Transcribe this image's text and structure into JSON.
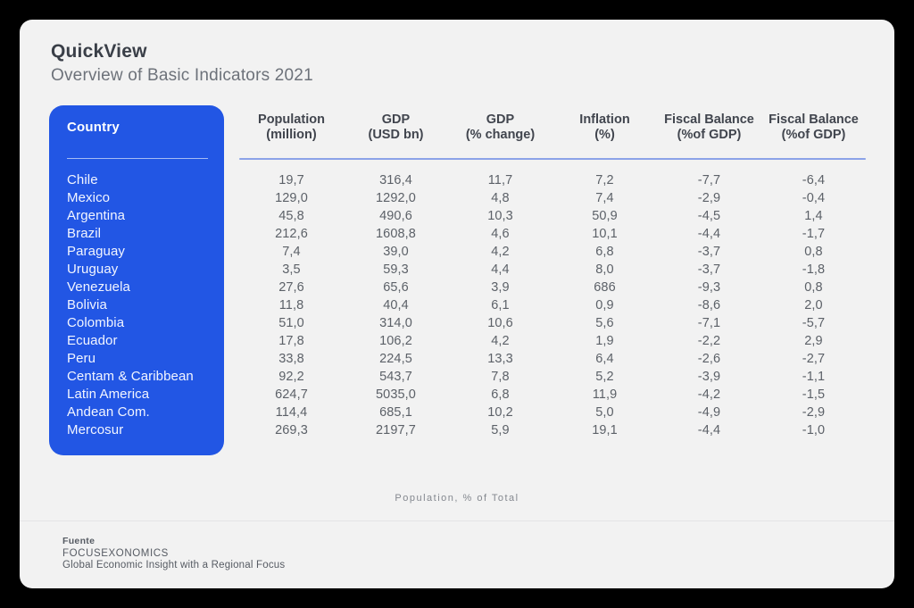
{
  "page": {
    "title": "QuickView",
    "subtitle": "Overview of Basic Indicators 2021"
  },
  "colors": {
    "accent_blue": "#2256E4",
    "header_rule_blue": "#8CA3E8",
    "card_bg": "#F2F2F2",
    "outer_bg": "#000000"
  },
  "table": {
    "country_header": "Country",
    "columns": [
      {
        "label": "Population",
        "sub": "(million)"
      },
      {
        "label": "GDP",
        "sub": "(USD bn)"
      },
      {
        "label": "GDP",
        "sub": "(% change)"
      },
      {
        "label": "Inflation",
        "sub": "(%)"
      },
      {
        "label": "Fiscal Balance",
        "sub": "(%of GDP)"
      },
      {
        "label": "Fiscal Balance",
        "sub": "(%of GDP)"
      }
    ]
  },
  "chart_data": {
    "type": "table",
    "title": "QuickView — Overview of Basic Indicators 2021",
    "columns": [
      "Country",
      "Population (million)",
      "GDP (USD bn)",
      "GDP (% change)",
      "Inflation (%)",
      "Fiscal Balance (%of GDP)",
      "Fiscal Balance (%of GDP)"
    ],
    "rows": [
      {
        "country": "Chile",
        "values": [
          "19,7",
          "316,4",
          "11,7",
          "7,2",
          "-7,7",
          "-6,4"
        ]
      },
      {
        "country": "Mexico",
        "values": [
          "129,0",
          "1292,0",
          "4,8",
          "7,4",
          "-2,9",
          "-0,4"
        ]
      },
      {
        "country": "Argentina",
        "values": [
          "45,8",
          "490,6",
          "10,3",
          "50,9",
          "-4,5",
          "1,4"
        ]
      },
      {
        "country": "Brazil",
        "values": [
          "212,6",
          "1608,8",
          "4,6",
          "10,1",
          "-4,4",
          "-1,7"
        ]
      },
      {
        "country": "Paraguay",
        "values": [
          "7,4",
          "39,0",
          "4,2",
          "6,8",
          "-3,7",
          "0,8"
        ]
      },
      {
        "country": "Uruguay",
        "values": [
          "3,5",
          "59,3",
          "4,4",
          "8,0",
          "-3,7",
          "-1,8"
        ]
      },
      {
        "country": "Venezuela",
        "values": [
          "27,6",
          "65,6",
          "3,9",
          "686",
          "-9,3",
          "0,8"
        ]
      },
      {
        "country": "Bolivia",
        "values": [
          "11,8",
          "40,4",
          "6,1",
          "0,9",
          "-8,6",
          "2,0"
        ]
      },
      {
        "country": "Colombia",
        "values": [
          "51,0",
          "314,0",
          "10,6",
          "5,6",
          "-7,1",
          "-5,7"
        ]
      },
      {
        "country": "Ecuador",
        "values": [
          "17,8",
          "106,2",
          "4,2",
          "1,9",
          "-2,2",
          "2,9"
        ]
      },
      {
        "country": "Peru",
        "values": [
          "33,8",
          "224,5",
          "13,3",
          "6,4",
          "-2,6",
          "-2,7"
        ]
      },
      {
        "country": "Centam & Caribbean",
        "values": [
          "92,2",
          "543,7",
          "7,8",
          "5,2",
          "-3,9",
          "-1,1"
        ]
      },
      {
        "country": "Latin America",
        "values": [
          "624,7",
          "5035,0",
          "6,8",
          "11,9",
          "-4,2",
          "-1,5"
        ]
      },
      {
        "country": "Andean Com.",
        "values": [
          "114,4",
          "685,1",
          "10,2",
          "5,0",
          "-4,9",
          "-2,9"
        ]
      },
      {
        "country": "Mercosur",
        "values": [
          "269,3",
          "2197,7",
          "5,9",
          "19,1",
          "-4,4",
          "-1,0"
        ]
      }
    ]
  },
  "caption": "Population, % of Total",
  "footer": {
    "source_label": "Fuente",
    "source_name": "FOCUSEXONOMICS",
    "tagline": "Global Economic Insight with a Regional Focus"
  }
}
